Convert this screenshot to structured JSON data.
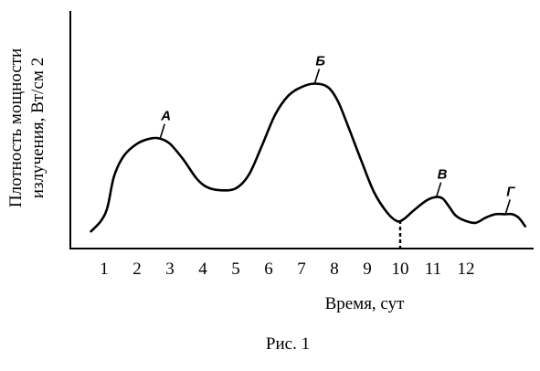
{
  "chart_data": {
    "type": "line",
    "xlabel": "Время, сут",
    "ylabel_line1": "Плотность мощности",
    "ylabel_line2": "излучения, Вт/см 2",
    "x_ticks": [
      "1",
      "2",
      "3",
      "4",
      "5",
      "6",
      "7",
      "8",
      "9",
      "10",
      "11",
      "12"
    ],
    "xlim": [
      0.6,
      13.8
    ],
    "series": [
      {
        "x": [
          0.6,
          0.9,
          1.1,
          1.3,
          1.6,
          2.0,
          2.4,
          2.7,
          3.0,
          3.4,
          3.8,
          4.1,
          4.5,
          5.0,
          5.4,
          5.8,
          6.2,
          6.6,
          7.0,
          7.4,
          7.8,
          8.1,
          8.4,
          8.8,
          9.2,
          9.6,
          9.9,
          10.1,
          10.4,
          10.8,
          11.1,
          11.3,
          11.5,
          11.7,
          12.0,
          12.3,
          12.6,
          12.9,
          13.2,
          13.4,
          13.6,
          13.8
        ],
        "y": [
          0.1,
          0.16,
          0.24,
          0.42,
          0.54,
          0.61,
          0.64,
          0.64,
          0.61,
          0.52,
          0.41,
          0.36,
          0.34,
          0.35,
          0.43,
          0.6,
          0.78,
          0.89,
          0.94,
          0.96,
          0.94,
          0.86,
          0.72,
          0.52,
          0.33,
          0.21,
          0.16,
          0.17,
          0.22,
          0.28,
          0.3,
          0.29,
          0.24,
          0.19,
          0.16,
          0.15,
          0.18,
          0.2,
          0.2,
          0.2,
          0.18,
          0.13
        ]
      }
    ],
    "points": [
      {
        "label": "А",
        "x": 2.7,
        "y": 0.64
      },
      {
        "label": "Б",
        "x": 7.4,
        "y": 0.96
      },
      {
        "label": "В",
        "x": 11.1,
        "y": 0.3
      },
      {
        "label": "Г",
        "x": 13.2,
        "y": 0.2
      }
    ],
    "dashed_marker_x": 10
  },
  "caption": "Рис. 1"
}
